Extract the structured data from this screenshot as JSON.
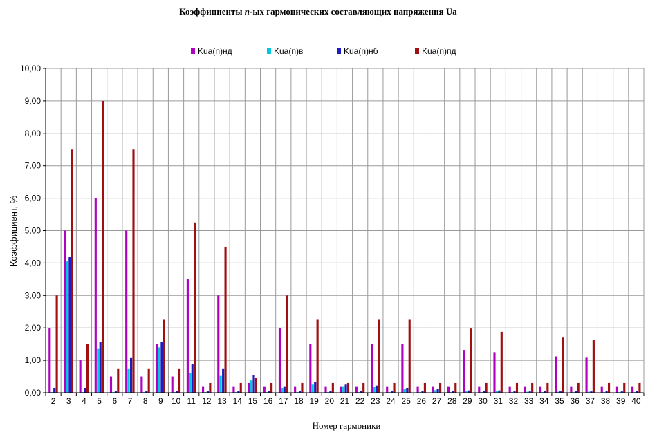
{
  "chart_data": {
    "type": "bar",
    "title": "Коэффициенты n-ых гармонических составляющих напряжения Ua",
    "xlabel": "Номер гармоники",
    "ylabel": "Коэффициент, %",
    "ylim": [
      0,
      10
    ],
    "yticks": [
      "0,00",
      "1,00",
      "2,00",
      "3,00",
      "4,00",
      "5,00",
      "6,00",
      "7,00",
      "8,00",
      "9,00",
      "10,00"
    ],
    "grid": true,
    "legend_position": "top",
    "categories": [
      "2",
      "3",
      "4",
      "5",
      "6",
      "7",
      "8",
      "9",
      "10",
      "11",
      "12",
      "13",
      "14",
      "15",
      "16",
      "17",
      "18",
      "19",
      "20",
      "21",
      "22",
      "23",
      "24",
      "25",
      "26",
      "27",
      "28",
      "29",
      "30",
      "31",
      "32",
      "33",
      "34",
      "35",
      "36",
      "37",
      "38",
      "39",
      "40"
    ],
    "series": [
      {
        "name": "Kua(n)нд",
        "color": "#b000c0",
        "values": [
          2.0,
          5.0,
          1.0,
          6.0,
          0.5,
          5.0,
          0.5,
          1.5,
          0.5,
          3.5,
          0.2,
          3.0,
          0.2,
          0.3,
          0.2,
          2.0,
          0.2,
          1.5,
          0.2,
          0.2,
          0.2,
          1.5,
          0.2,
          1.5,
          0.2,
          0.2,
          0.2,
          1.32,
          0.2,
          1.25,
          0.2,
          0.2,
          0.2,
          1.12,
          0.2,
          1.08,
          0.2,
          0.2,
          0.2
        ]
      },
      {
        "name": "Kua(n)в",
        "color": "#00c8e0",
        "values": [
          0.02,
          4.05,
          0.02,
          1.35,
          0.02,
          0.75,
          0.02,
          1.4,
          0.02,
          0.62,
          0.02,
          0.52,
          0.02,
          0.38,
          0.02,
          0.15,
          0.02,
          0.25,
          0.02,
          0.2,
          0.02,
          0.18,
          0.02,
          0.12,
          0.02,
          0.08,
          0.02,
          0.05,
          0.02,
          0.05,
          0.02,
          0.03,
          0.02,
          0.03,
          0.02,
          0.03,
          0.02,
          0.02,
          0.02
        ]
      },
      {
        "name": "Kua(n)нб",
        "color": "#1c1cc0",
        "values": [
          0.15,
          4.2,
          0.15,
          1.57,
          0.05,
          1.07,
          0.05,
          1.57,
          0.05,
          0.88,
          0.05,
          0.75,
          0.05,
          0.55,
          0.05,
          0.2,
          0.05,
          0.33,
          0.05,
          0.25,
          0.05,
          0.22,
          0.05,
          0.15,
          0.05,
          0.12,
          0.05,
          0.07,
          0.05,
          0.07,
          0.05,
          0.04,
          0.05,
          0.04,
          0.05,
          0.04,
          0.05,
          0.04,
          0.05
        ]
      },
      {
        "name": "Kua(n)пд",
        "color": "#a01010",
        "values": [
          3.0,
          7.5,
          1.5,
          9.0,
          0.75,
          7.5,
          0.75,
          2.25,
          0.75,
          5.25,
          0.3,
          4.5,
          0.3,
          0.45,
          0.3,
          3.0,
          0.3,
          2.25,
          0.3,
          0.3,
          0.3,
          2.25,
          0.3,
          2.25,
          0.3,
          0.3,
          0.3,
          1.98,
          0.3,
          1.88,
          0.3,
          0.3,
          0.3,
          1.7,
          0.3,
          1.62,
          0.3,
          0.3,
          0.3
        ]
      }
    ]
  }
}
